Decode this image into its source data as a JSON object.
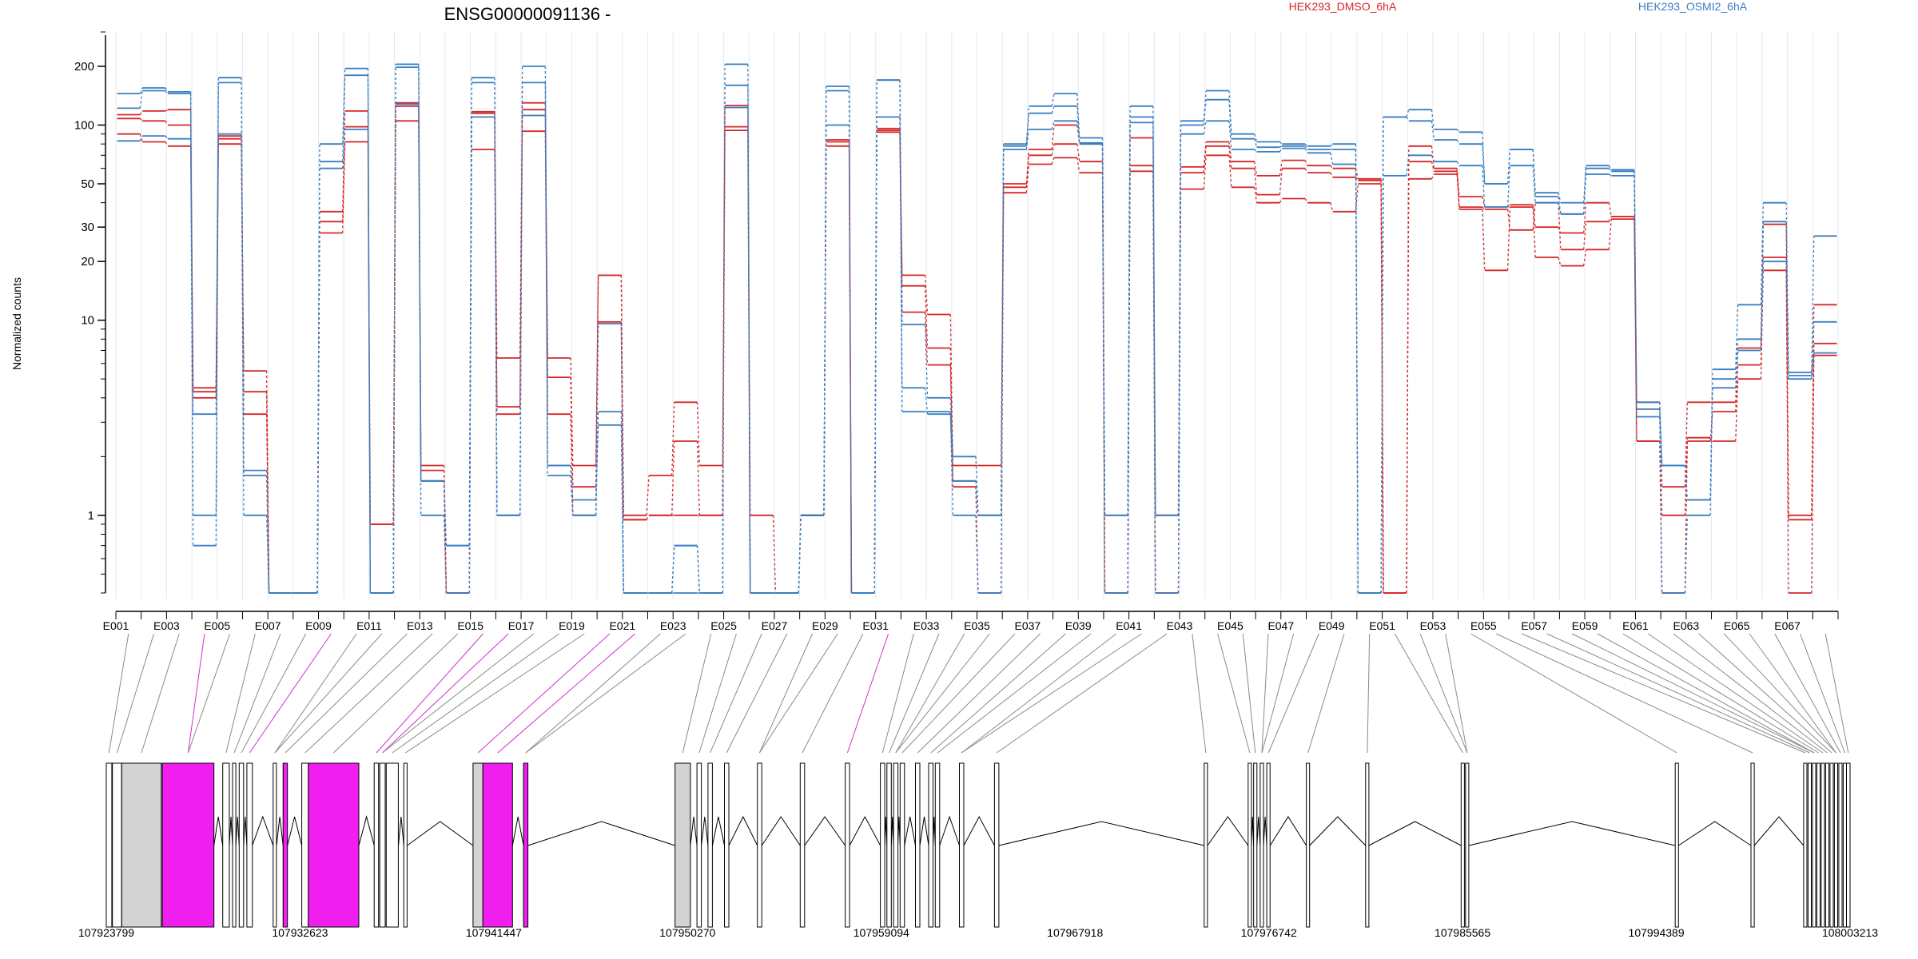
{
  "chart_data": {
    "type": "line",
    "title": "ENSG00000091136 -",
    "ylabel": "Normalized counts",
    "yscale": "log",
    "ylim": [
      0.4,
      300
    ],
    "yticks": [
      1,
      10,
      20,
      30,
      50,
      100,
      200
    ],
    "yticklabels": [
      "1",
      "10",
      "20",
      "30",
      "50",
      "100",
      "200"
    ],
    "categories": [
      "E001",
      "E002",
      "E003",
      "E004",
      "E005",
      "E006",
      "E007",
      "E008",
      "E009",
      "E010",
      "E011",
      "E012",
      "E013",
      "E014",
      "E015",
      "E016",
      "E017",
      "E018",
      "E019",
      "E020",
      "E021",
      "E022",
      "E023",
      "E024",
      "E025",
      "E026",
      "E027",
      "E028",
      "E029",
      "E030",
      "E031",
      "E032",
      "E033",
      "E034",
      "E035",
      "E036",
      "E037",
      "E038",
      "E039",
      "E040",
      "E041",
      "E042",
      "E043",
      "E044",
      "E045",
      "E046",
      "E047",
      "E048",
      "E049",
      "E050",
      "E051",
      "E052",
      "E053",
      "E054",
      "E055",
      "E056",
      "E057",
      "E058",
      "E059",
      "E060",
      "E061",
      "E062",
      "E063",
      "E064",
      "E065",
      "E066",
      "E067",
      "E068"
    ],
    "tick_labels_shown": [
      "E001",
      "E003",
      "E005",
      "E007",
      "E009",
      "E011",
      "E013",
      "E015",
      "E017",
      "E019",
      "E021",
      "E023",
      "E025",
      "E027",
      "E029",
      "E031",
      "E033",
      "E035",
      "E037",
      "E039",
      "E041",
      "E043",
      "E045",
      "E047",
      "E049",
      "E051",
      "E053",
      "E055",
      "E057",
      "E059",
      "E061",
      "E063",
      "E065",
      "E067"
    ],
    "legend": [
      {
        "name": "HEK293_DMSO_6hA",
        "color": "#d62728"
      },
      {
        "name": "HEK293_OSMI2_6hA",
        "color": "#3a7fc1"
      }
    ],
    "series": [
      {
        "name": "HEK293_DMSO_6hA",
        "color": "#d62728",
        "values": [
          113,
          118,
          120,
          4.5,
          88,
          5.5,
          0.4,
          0.4,
          36,
          118,
          0.9,
          130,
          1.8,
          0.4,
          117,
          6.4,
          130,
          6.4,
          1.8,
          17,
          1.0,
          1.6,
          3.8,
          1.8,
          126,
          1.0,
          0.4,
          1.0,
          84,
          0.4,
          96,
          17,
          10.7,
          1.8,
          1.8,
          50,
          75,
          100,
          80,
          0.4,
          86,
          1.0,
          61,
          82,
          65,
          55,
          66,
          62,
          60,
          53,
          0.4,
          78,
          60,
          43,
          38,
          39,
          30,
          28,
          40,
          34,
          3.8,
          1.4,
          3.8,
          3.8,
          7.2,
          31,
          1.0,
          12
        ]
      },
      {
        "name": "HEK293_DMSO_6hA",
        "color": "#d62728",
        "values": [
          108,
          105,
          100,
          4.3,
          85,
          4.3,
          0.4,
          0.4,
          32,
          98,
          0.9,
          125,
          1.7,
          0.4,
          115,
          3.6,
          120,
          5.1,
          1.4,
          17,
          0.95,
          1.0,
          2.4,
          1.0,
          98,
          0.4,
          0.4,
          1.0,
          82,
          0.4,
          94,
          15,
          7.2,
          1.5,
          1.0,
          48,
          70,
          80,
          65,
          0.4,
          62,
          0.4,
          57,
          78,
          60,
          44,
          60,
          57,
          54,
          52,
          0.4,
          65,
          58,
          38,
          37,
          29,
          40,
          23,
          32,
          34,
          2.4,
          1.0,
          2.4,
          3.4,
          5.9,
          21,
          0.95,
          7.6
        ]
      },
      {
        "name": "HEK293_DMSO_6hA",
        "color": "#d62728",
        "values": [
          90,
          82,
          78,
          4.0,
          80,
          3.3,
          0.4,
          0.4,
          28,
          82,
          0.4,
          105,
          1.5,
          0.4,
          75,
          3.3,
          93,
          3.3,
          1.0,
          9.8,
          0.95,
          1.0,
          1.0,
          1.0,
          94,
          0.4,
          0.4,
          1.0,
          78,
          0.4,
          92,
          11,
          5.9,
          1.4,
          0.4,
          45,
          63,
          68,
          57,
          0.4,
          58,
          0.4,
          47,
          70,
          48,
          40,
          42,
          40,
          36,
          50,
          0.4,
          53,
          56,
          37,
          18,
          38,
          21,
          19,
          23,
          33,
          2.4,
          0.4,
          2.5,
          2.4,
          5.0,
          18,
          0.4,
          6.6
        ]
      },
      {
        "name": "HEK293_OSMI2_6hA",
        "color": "#3a7fc1",
        "values": [
          145,
          155,
          148,
          0.7,
          175,
          1.7,
          0.4,
          0.4,
          80,
          195,
          0.4,
          205,
          1.5,
          0.7,
          175,
          1.0,
          200,
          1.8,
          1.2,
          2.9,
          0.4,
          0.4,
          0.7,
          0.4,
          205,
          0.4,
          0.4,
          1.0,
          158,
          0.4,
          170,
          9.5,
          4.0,
          2.0,
          1.0,
          80,
          125,
          145,
          86,
          1.0,
          125,
          1.0,
          105,
          150,
          90,
          82,
          80,
          78,
          80,
          0.4,
          110,
          120,
          95,
          92,
          50,
          75,
          45,
          40,
          62,
          59,
          3.8,
          1.8,
          1.2,
          5.6,
          12,
          40,
          5.4,
          27
        ]
      },
      {
        "name": "HEK293_OSMI2_6hA",
        "color": "#3a7fc1",
        "values": [
          122,
          150,
          145,
          3.3,
          165,
          1.6,
          0.4,
          0.4,
          65,
          180,
          0.4,
          198,
          1.5,
          0.7,
          165,
          1.0,
          165,
          1.6,
          1.0,
          3.4,
          0.4,
          0.4,
          0.7,
          0.4,
          160,
          0.4,
          0.4,
          1.0,
          150,
          0.4,
          170,
          4.5,
          3.3,
          1.5,
          1.0,
          78,
          115,
          125,
          81,
          1.0,
          110,
          1.0,
          100,
          135,
          85,
          77,
          78,
          75,
          75,
          0.4,
          110,
          105,
          84,
          80,
          50,
          75,
          43,
          35,
          60,
          58,
          3.5,
          1.8,
          1.2,
          5.0,
          8.0,
          32,
          5.2,
          9.8
        ]
      },
      {
        "name": "HEK293_OSMI2_6hA",
        "color": "#3a7fc1",
        "values": [
          83,
          88,
          85,
          1.0,
          90,
          1.0,
          0.4,
          0.4,
          60,
          95,
          0.4,
          128,
          1.0,
          0.4,
          110,
          1.0,
          112,
          1.8,
          1.0,
          9.6,
          0.4,
          0.4,
          0.4,
          0.4,
          123,
          0.4,
          0.4,
          1.0,
          100,
          0.4,
          110,
          3.4,
          3.4,
          1.0,
          0.4,
          75,
          95,
          105,
          80,
          0.4,
          103,
          0.4,
          90,
          105,
          75,
          73,
          76,
          72,
          63,
          0.4,
          55,
          70,
          65,
          62,
          38,
          62,
          40,
          35,
          56,
          55,
          3.2,
          0.4,
          1.0,
          4.5,
          7.0,
          20,
          5.0,
          6.8
        ]
      }
    ],
    "gene_axis_ticks": [
      "107923799",
      "107932623",
      "107941447",
      "107950270",
      "107959094",
      "107967918",
      "107976742",
      "107985565",
      "107994389",
      "108003213"
    ],
    "gene_axis_range": [
      107923799,
      108003213
    ]
  }
}
